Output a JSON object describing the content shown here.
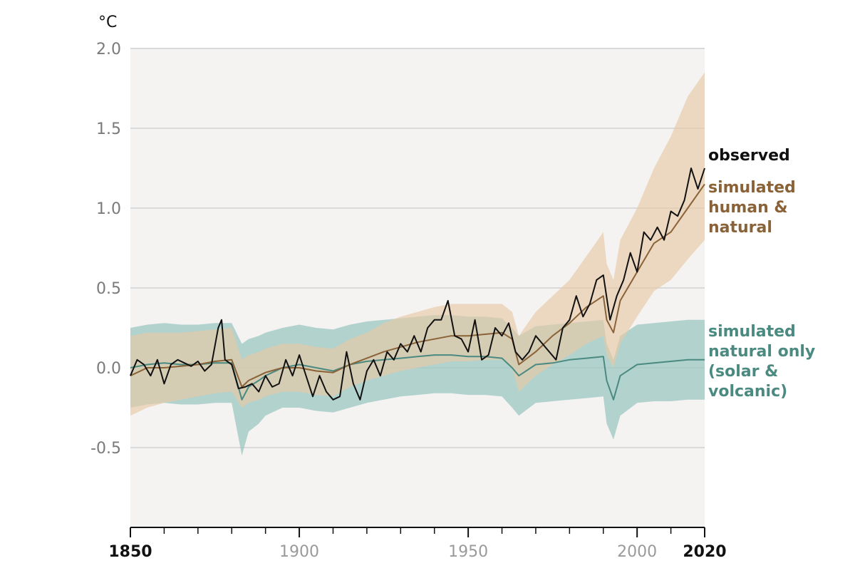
{
  "chart_data": {
    "type": "line",
    "title": "",
    "ylabel": "°C",
    "xlabel": "",
    "xlim": [
      1850,
      2020
    ],
    "ylim": [
      -1.0,
      2.0
    ],
    "grid": true,
    "y_ticks": [
      {
        "value": 2.0,
        "label": "2.0"
      },
      {
        "value": 1.5,
        "label": "1.5"
      },
      {
        "value": 1.0,
        "label": "1.0"
      },
      {
        "value": 0.5,
        "label": "0.5"
      },
      {
        "value": 0.0,
        "label": "0.0"
      },
      {
        "value": -0.5,
        "label": "-0.5"
      }
    ],
    "x_ticks": [
      {
        "value": 1850,
        "label": "1850",
        "bold": true
      },
      {
        "value": 1900,
        "label": "1900",
        "bold": false
      },
      {
        "value": 1950,
        "label": "1950",
        "bold": false
      },
      {
        "value": 2000,
        "label": "2000",
        "bold": false
      },
      {
        "value": 2020,
        "label": "2020",
        "bold": true
      }
    ],
    "x_minor_ticks": [
      1860,
      1870,
      1880,
      1890,
      1910,
      1920,
      1930,
      1940,
      1960,
      1970,
      1980,
      1990,
      2010
    ],
    "colors": {
      "observed": "#111111",
      "human_natural": "#8a6237",
      "human_natural_band": "#e8c9a6",
      "natural_only": "#4a8a80",
      "natural_only_band": "#9cc7c2",
      "plot_bg": "#f4f3f2",
      "grid": "#d9d9d9"
    },
    "series": [
      {
        "name": "observed",
        "label_lines": [
          "observed"
        ],
        "color": "#111111",
        "x": [
          1850,
          1852,
          1854,
          1856,
          1858,
          1860,
          1862,
          1864,
          1866,
          1868,
          1870,
          1872,
          1874,
          1876,
          1877,
          1878,
          1880,
          1882,
          1884,
          1886,
          1888,
          1890,
          1892,
          1894,
          1896,
          1898,
          1900,
          1902,
          1904,
          1906,
          1908,
          1910,
          1912,
          1914,
          1916,
          1918,
          1920,
          1922,
          1924,
          1926,
          1928,
          1930,
          1932,
          1934,
          1936,
          1938,
          1940,
          1942,
          1944,
          1946,
          1948,
          1950,
          1952,
          1954,
          1956,
          1958,
          1960,
          1962,
          1964,
          1966,
          1968,
          1970,
          1972,
          1974,
          1976,
          1978,
          1980,
          1982,
          1984,
          1986,
          1988,
          1990,
          1992,
          1994,
          1996,
          1998,
          2000,
          2002,
          2004,
          2006,
          2008,
          2010,
          2012,
          2014,
          2016,
          2018,
          2020
        ],
        "values": [
          -0.05,
          0.05,
          0.02,
          -0.05,
          0.05,
          -0.1,
          0.02,
          0.05,
          0.03,
          0.01,
          0.04,
          -0.02,
          0.02,
          0.25,
          0.3,
          0.05,
          0.02,
          -0.13,
          -0.12,
          -0.1,
          -0.15,
          -0.05,
          -0.12,
          -0.1,
          0.05,
          -0.05,
          0.08,
          -0.05,
          -0.18,
          -0.05,
          -0.15,
          -0.2,
          -0.18,
          0.1,
          -0.1,
          -0.2,
          -0.02,
          0.05,
          -0.05,
          0.1,
          0.05,
          0.15,
          0.1,
          0.2,
          0.1,
          0.25,
          0.3,
          0.3,
          0.42,
          0.2,
          0.18,
          0.1,
          0.3,
          0.05,
          0.08,
          0.25,
          0.2,
          0.28,
          0.1,
          0.05,
          0.1,
          0.2,
          0.15,
          0.1,
          0.05,
          0.25,
          0.3,
          0.45,
          0.32,
          0.4,
          0.55,
          0.58,
          0.3,
          0.45,
          0.55,
          0.72,
          0.6,
          0.85,
          0.8,
          0.88,
          0.8,
          0.98,
          0.95,
          1.05,
          1.25,
          1.12,
          1.25
        ]
      },
      {
        "name": "simulated human & natural",
        "label_lines": [
          "simulated",
          "human &",
          "natural"
        ],
        "color": "#8a6237",
        "x": [
          1850,
          1855,
          1860,
          1865,
          1870,
          1875,
          1880,
          1883,
          1885,
          1888,
          1890,
          1895,
          1900,
          1905,
          1910,
          1915,
          1920,
          1925,
          1930,
          1935,
          1940,
          1945,
          1950,
          1955,
          1960,
          1963,
          1965,
          1970,
          1975,
          1980,
          1985,
          1990,
          1991,
          1993,
          1995,
          2000,
          2005,
          2010,
          2015,
          2020
        ],
        "values": [
          -0.05,
          0.0,
          0.0,
          0.01,
          0.02,
          0.04,
          0.05,
          -0.12,
          -0.08,
          -0.05,
          -0.03,
          0.0,
          0.0,
          -0.02,
          -0.03,
          0.02,
          0.06,
          0.1,
          0.13,
          0.16,
          0.18,
          0.2,
          0.2,
          0.21,
          0.22,
          0.18,
          0.02,
          0.1,
          0.2,
          0.28,
          0.38,
          0.45,
          0.3,
          0.22,
          0.42,
          0.6,
          0.78,
          0.85,
          1.0,
          1.15
        ],
        "band_low": [
          -0.3,
          -0.25,
          -0.22,
          -0.2,
          -0.18,
          -0.16,
          -0.15,
          -0.25,
          -0.22,
          -0.2,
          -0.18,
          -0.15,
          -0.15,
          -0.17,
          -0.18,
          -0.12,
          -0.08,
          -0.05,
          -0.02,
          0.0,
          0.02,
          0.04,
          0.04,
          0.05,
          0.05,
          0.0,
          -0.15,
          -0.05,
          0.02,
          0.08,
          0.15,
          0.2,
          0.08,
          0.0,
          0.15,
          0.32,
          0.48,
          0.55,
          0.68,
          0.8
        ],
        "band_high": [
          0.2,
          0.22,
          0.22,
          0.22,
          0.23,
          0.24,
          0.25,
          0.05,
          0.08,
          0.1,
          0.12,
          0.15,
          0.15,
          0.13,
          0.12,
          0.18,
          0.22,
          0.28,
          0.32,
          0.35,
          0.38,
          0.4,
          0.4,
          0.4,
          0.4,
          0.35,
          0.2,
          0.35,
          0.45,
          0.55,
          0.7,
          0.85,
          0.65,
          0.55,
          0.8,
          1.0,
          1.25,
          1.45,
          1.7,
          1.85
        ]
      },
      {
        "name": "simulated natural only (solar & volcanic)",
        "label_lines": [
          "simulated",
          "natural only",
          "(solar &",
          "volcanic)"
        ],
        "color": "#4a8a80",
        "x": [
          1850,
          1855,
          1860,
          1865,
          1870,
          1875,
          1880,
          1883,
          1885,
          1888,
          1890,
          1895,
          1900,
          1905,
          1910,
          1915,
          1920,
          1925,
          1930,
          1935,
          1940,
          1945,
          1950,
          1955,
          1960,
          1963,
          1965,
          1970,
          1975,
          1980,
          1985,
          1990,
          1991,
          1993,
          1995,
          2000,
          2005,
          2010,
          2015,
          2020
        ],
        "values": [
          0.0,
          0.02,
          0.03,
          0.02,
          0.02,
          0.03,
          0.03,
          -0.2,
          -0.12,
          -0.08,
          -0.05,
          0.0,
          0.02,
          0.0,
          -0.02,
          0.02,
          0.04,
          0.05,
          0.06,
          0.07,
          0.08,
          0.08,
          0.07,
          0.07,
          0.06,
          0.0,
          -0.05,
          0.02,
          0.03,
          0.05,
          0.06,
          0.07,
          -0.08,
          -0.2,
          -0.05,
          0.02,
          0.03,
          0.04,
          0.05,
          0.05
        ],
        "band_low": [
          -0.25,
          -0.23,
          -0.22,
          -0.23,
          -0.23,
          -0.22,
          -0.22,
          -0.55,
          -0.4,
          -0.35,
          -0.3,
          -0.25,
          -0.25,
          -0.27,
          -0.28,
          -0.25,
          -0.22,
          -0.2,
          -0.18,
          -0.17,
          -0.16,
          -0.16,
          -0.17,
          -0.17,
          -0.18,
          -0.25,
          -0.3,
          -0.22,
          -0.21,
          -0.2,
          -0.19,
          -0.18,
          -0.35,
          -0.45,
          -0.3,
          -0.22,
          -0.21,
          -0.21,
          -0.2,
          -0.2
        ],
        "band_high": [
          0.25,
          0.27,
          0.28,
          0.27,
          0.27,
          0.28,
          0.28,
          0.15,
          0.18,
          0.2,
          0.22,
          0.25,
          0.27,
          0.25,
          0.24,
          0.27,
          0.29,
          0.3,
          0.31,
          0.32,
          0.33,
          0.33,
          0.32,
          0.32,
          0.31,
          0.25,
          0.2,
          0.26,
          0.27,
          0.28,
          0.29,
          0.3,
          0.15,
          0.05,
          0.2,
          0.27,
          0.28,
          0.29,
          0.3,
          0.3
        ]
      }
    ]
  }
}
